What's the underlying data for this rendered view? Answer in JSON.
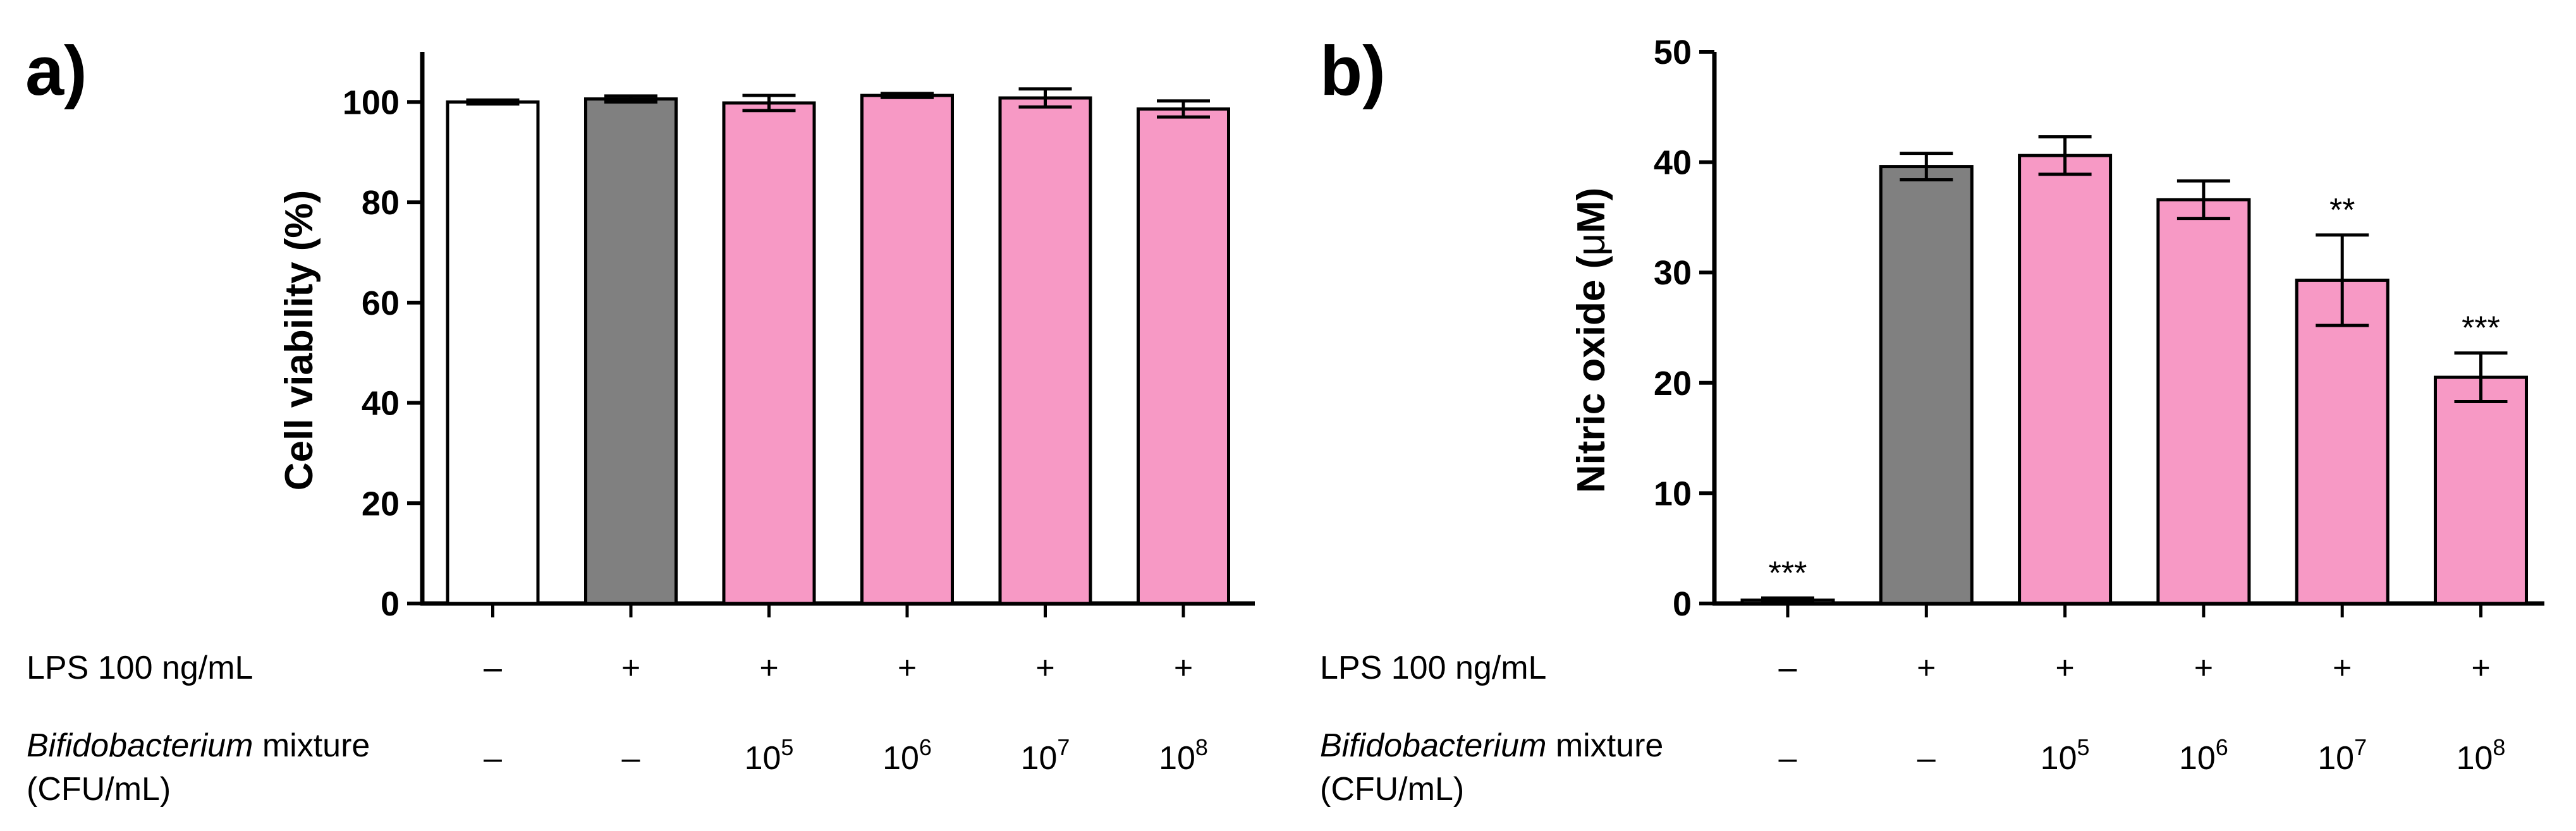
{
  "chart_data": [
    {
      "type": "bar",
      "panel_label": "a)",
      "ylabel": "Cell viability (%)",
      "ylim": [
        0,
        110
      ],
      "yticks": [
        "0",
        "20",
        "40",
        "60",
        "80",
        "100"
      ],
      "row_labels": {
        "lps": "LPS 100 ng/mL",
        "bif_italic": "Bifidobacterium",
        "bif_rest": " mixture",
        "cfu": "(CFU/mL)"
      },
      "bars": [
        {
          "lps": "–",
          "bif_base": "–",
          "bif_exp": "",
          "value": 100.0,
          "error": 0.4,
          "sig": "",
          "color": "#ffffff"
        },
        {
          "lps": "+",
          "bif_base": "–",
          "bif_exp": "",
          "value": 100.6,
          "error": 0.6,
          "sig": "",
          "color": "#808080"
        },
        {
          "lps": "+",
          "bif_base": "10",
          "bif_exp": "5",
          "value": 99.8,
          "error": 1.5,
          "sig": "",
          "color": "#f799c5"
        },
        {
          "lps": "+",
          "bif_base": "10",
          "bif_exp": "6",
          "value": 101.3,
          "error": 0.4,
          "sig": "",
          "color": "#f799c5"
        },
        {
          "lps": "+",
          "bif_base": "10",
          "bif_exp": "7",
          "value": 100.8,
          "error": 1.8,
          "sig": "",
          "color": "#f799c5"
        },
        {
          "lps": "+",
          "bif_base": "10",
          "bif_exp": "8",
          "value": 98.6,
          "error": 1.6,
          "sig": "",
          "color": "#f799c5"
        }
      ]
    },
    {
      "type": "bar",
      "panel_label": "b)",
      "ylabel_prefix": "Nitric oxide (",
      "ylabel_unit_mu": "μ",
      "ylabel_suffix": "M)",
      "ylim": [
        0,
        50
      ],
      "yticks": [
        "0",
        "10",
        "20",
        "30",
        "40",
        "50"
      ],
      "row_labels": {
        "lps": "LPS 100 ng/mL",
        "bif_italic": "Bifidobacterium",
        "bif_rest": " mixture",
        "cfu": "(CFU/mL)"
      },
      "bars": [
        {
          "lps": "–",
          "bif_base": "–",
          "bif_exp": "",
          "value": 0.3,
          "error": 0.2,
          "sig": "***",
          "color": "#ffffff"
        },
        {
          "lps": "+",
          "bif_base": "–",
          "bif_exp": "",
          "value": 39.6,
          "error": 1.2,
          "sig": "",
          "color": "#808080"
        },
        {
          "lps": "+",
          "bif_base": "10",
          "bif_exp": "5",
          "value": 40.6,
          "error": 1.7,
          "sig": "",
          "color": "#f799c5"
        },
        {
          "lps": "+",
          "bif_base": "10",
          "bif_exp": "6",
          "value": 36.6,
          "error": 1.7,
          "sig": "",
          "color": "#f799c5"
        },
        {
          "lps": "+",
          "bif_base": "10",
          "bif_exp": "7",
          "value": 29.3,
          "error": 4.1,
          "sig": "**",
          "color": "#f799c5"
        },
        {
          "lps": "+",
          "bif_base": "10",
          "bif_exp": "8",
          "value": 20.5,
          "error": 2.2,
          "sig": "***",
          "color": "#f799c5"
        }
      ]
    }
  ]
}
